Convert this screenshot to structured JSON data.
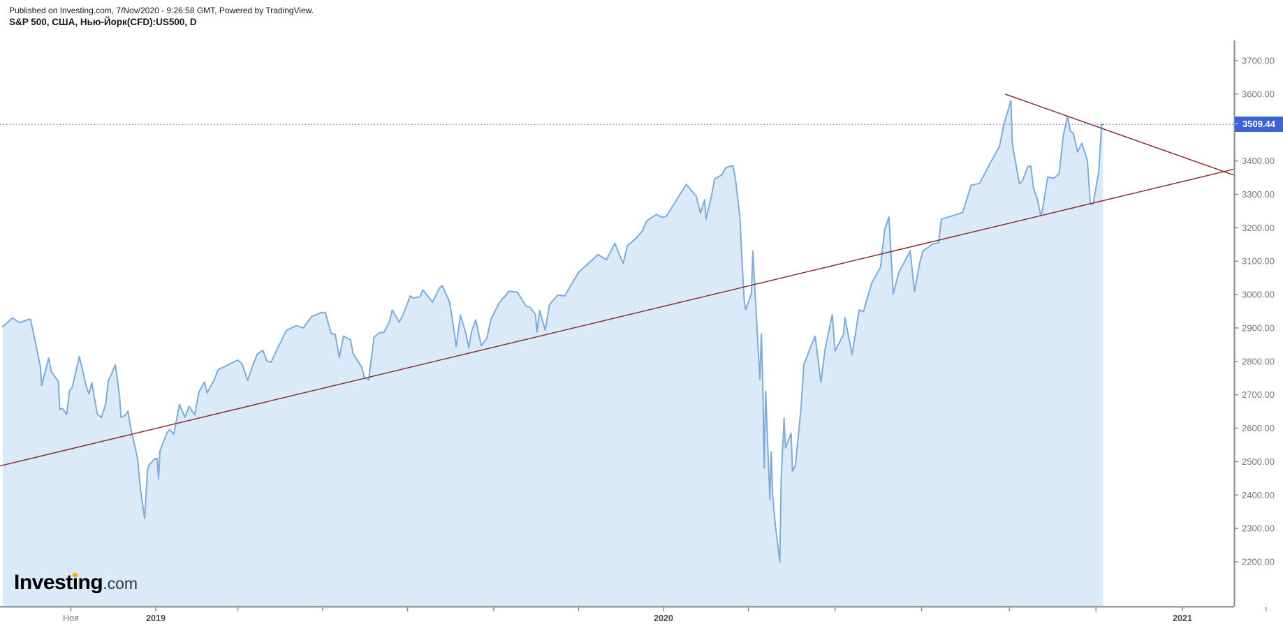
{
  "header": {
    "published_line": "Published on Investing.com, 7/Nov/2020 - 9:26:58 GMT, Powered by TradingView.",
    "symbol_line": "S&P 500, США, Нью-Йорк(CFD):US500, D"
  },
  "logo": {
    "main": "Investing",
    "suffix": ".com"
  },
  "colors": {
    "series_line": "#7aace0",
    "series_fill": "#daeaf8",
    "trendline": "#8b2e2e",
    "last_price_line": "#4169e1",
    "badge_bg": "#3e63d6",
    "badge_text": "#ffffff",
    "axis_line": "#8a8a8a",
    "axis_text": "#757575",
    "year_text": "#4a4a4a",
    "logo_accent": "#f7a823"
  },
  "chart_data": {
    "type": "area",
    "title": "S&P 500, США, Нью-Йорк(CFD):US500, D",
    "xlabel": "",
    "ylabel": "",
    "grid": false,
    "legend": false,
    "xlim": [
      "2018-09-11",
      "2021-02-06"
    ],
    "ylim": [
      2112,
      3762
    ],
    "last_price": {
      "value": 3509.44,
      "label": "3509.44"
    },
    "y_ticks": [
      {
        "value": 3700,
        "label": "3700.00"
      },
      {
        "value": 3600,
        "label": "3600.00"
      },
      {
        "value": 3400,
        "label": "3400.00"
      },
      {
        "value": 3300,
        "label": "3300.00"
      },
      {
        "value": 3200,
        "label": "3200.00"
      },
      {
        "value": 3100,
        "label": "3100.00"
      },
      {
        "value": 3000,
        "label": "3000.00"
      },
      {
        "value": 2900,
        "label": "2900.00"
      },
      {
        "value": 2800,
        "label": "2800.00"
      },
      {
        "value": 2700,
        "label": "2700.00"
      },
      {
        "value": 2600,
        "label": "2600.00"
      },
      {
        "value": 2500,
        "label": "2500.00"
      },
      {
        "value": 2400,
        "label": "2400.00"
      },
      {
        "value": 2300,
        "label": "2300.00"
      },
      {
        "value": 2200,
        "label": "2200.00"
      }
    ],
    "x_ticks": [
      {
        "date": "2018-11-01",
        "label": "Ноя",
        "style": "month"
      },
      {
        "date": "2019-01-01",
        "label": "2019",
        "style": "year"
      },
      {
        "date": "2019-03-01",
        "label": "",
        "style": "none"
      },
      {
        "date": "2019-05-01",
        "label": "",
        "style": "none"
      },
      {
        "date": "2019-07-01",
        "label": "",
        "style": "none"
      },
      {
        "date": "2019-09-01",
        "label": "",
        "style": "none"
      },
      {
        "date": "2019-11-01",
        "label": "",
        "style": "none"
      },
      {
        "date": "2020-01-01",
        "label": "2020",
        "style": "year"
      },
      {
        "date": "2020-03-01",
        "label": "",
        "style": "none"
      },
      {
        "date": "2020-05-01",
        "label": "",
        "style": "none"
      },
      {
        "date": "2020-07-01",
        "label": "",
        "style": "none"
      },
      {
        "date": "2020-09-01",
        "label": "",
        "style": "none"
      },
      {
        "date": "2020-11-01",
        "label": "",
        "style": "none"
      },
      {
        "date": "2021-01-01",
        "label": "2021",
        "style": "year"
      },
      {
        "date": "2021-03-01",
        "label": "",
        "style": "none"
      }
    ],
    "trendlines": [
      {
        "name": "rising-support",
        "points": [
          [
            "2018-09-11",
            2487
          ],
          [
            "2021-02-06",
            3375
          ]
        ]
      },
      {
        "name": "falling-resistance",
        "points": [
          [
            "2020-08-29",
            3600
          ],
          [
            "2021-02-06",
            3358
          ]
        ]
      }
    ],
    "series": [
      {
        "name": "US500 daily close",
        "points": [
          [
            "2018-09-13",
            2904
          ],
          [
            "2018-09-20",
            2930
          ],
          [
            "2018-09-25",
            2916
          ],
          [
            "2018-10-01",
            2925
          ],
          [
            "2018-10-03",
            2926
          ],
          [
            "2018-10-05",
            2886
          ],
          [
            "2018-10-10",
            2786
          ],
          [
            "2018-10-11",
            2728
          ],
          [
            "2018-10-16",
            2810
          ],
          [
            "2018-10-18",
            2768
          ],
          [
            "2018-10-23",
            2740
          ],
          [
            "2018-10-24",
            2656
          ],
          [
            "2018-10-26",
            2659
          ],
          [
            "2018-10-29",
            2641
          ],
          [
            "2018-10-31",
            2712
          ],
          [
            "2018-11-02",
            2723
          ],
          [
            "2018-11-07",
            2814
          ],
          [
            "2018-11-09",
            2781
          ],
          [
            "2018-11-12",
            2726
          ],
          [
            "2018-11-14",
            2702
          ],
          [
            "2018-11-16",
            2736
          ],
          [
            "2018-11-20",
            2642
          ],
          [
            "2018-11-23",
            2632
          ],
          [
            "2018-11-26",
            2673
          ],
          [
            "2018-11-28",
            2744
          ],
          [
            "2018-11-30",
            2760
          ],
          [
            "2018-12-03",
            2790
          ],
          [
            "2018-12-06",
            2696
          ],
          [
            "2018-12-07",
            2633
          ],
          [
            "2018-12-10",
            2638
          ],
          [
            "2018-12-12",
            2651
          ],
          [
            "2018-12-14",
            2600
          ],
          [
            "2018-12-17",
            2546
          ],
          [
            "2018-12-19",
            2507
          ],
          [
            "2018-12-21",
            2417
          ],
          [
            "2018-12-24",
            2330
          ],
          [
            "2018-12-26",
            2468
          ],
          [
            "2018-12-27",
            2489
          ],
          [
            "2018-12-31",
            2507
          ],
          [
            "2019-01-02",
            2510
          ],
          [
            "2019-01-03",
            2448
          ],
          [
            "2019-01-04",
            2532
          ],
          [
            "2019-01-09",
            2585
          ],
          [
            "2019-01-11",
            2596
          ],
          [
            "2019-01-14",
            2582
          ],
          [
            "2019-01-18",
            2671
          ],
          [
            "2019-01-22",
            2633
          ],
          [
            "2019-01-25",
            2665
          ],
          [
            "2019-01-29",
            2640
          ],
          [
            "2019-02-01",
            2707
          ],
          [
            "2019-02-05",
            2738
          ],
          [
            "2019-02-07",
            2706
          ],
          [
            "2019-02-12",
            2745
          ],
          [
            "2019-02-15",
            2776
          ],
          [
            "2019-02-20",
            2785
          ],
          [
            "2019-02-25",
            2796
          ],
          [
            "2019-03-01",
            2804
          ],
          [
            "2019-03-04",
            2793
          ],
          [
            "2019-03-08",
            2743
          ],
          [
            "2019-03-12",
            2791
          ],
          [
            "2019-03-15",
            2822
          ],
          [
            "2019-03-19",
            2833
          ],
          [
            "2019-03-22",
            2801
          ],
          [
            "2019-03-25",
            2798
          ],
          [
            "2019-03-29",
            2834
          ],
          [
            "2019-04-05",
            2893
          ],
          [
            "2019-04-12",
            2907
          ],
          [
            "2019-04-17",
            2900
          ],
          [
            "2019-04-23",
            2934
          ],
          [
            "2019-04-30",
            2946
          ],
          [
            "2019-05-03",
            2946
          ],
          [
            "2019-05-07",
            2884
          ],
          [
            "2019-05-10",
            2881
          ],
          [
            "2019-05-13",
            2812
          ],
          [
            "2019-05-16",
            2876
          ],
          [
            "2019-05-21",
            2864
          ],
          [
            "2019-05-23",
            2822
          ],
          [
            "2019-05-29",
            2783
          ],
          [
            "2019-05-31",
            2752
          ],
          [
            "2019-06-03",
            2744
          ],
          [
            "2019-06-07",
            2873
          ],
          [
            "2019-06-11",
            2886
          ],
          [
            "2019-06-14",
            2887
          ],
          [
            "2019-06-18",
            2918
          ],
          [
            "2019-06-20",
            2954
          ],
          [
            "2019-06-25",
            2917
          ],
          [
            "2019-06-28",
            2942
          ],
          [
            "2019-07-03",
            2996
          ],
          [
            "2019-07-05",
            2990
          ],
          [
            "2019-07-10",
            2993
          ],
          [
            "2019-07-12",
            3014
          ],
          [
            "2019-07-19",
            2977
          ],
          [
            "2019-07-24",
            3020
          ],
          [
            "2019-07-26",
            3026
          ],
          [
            "2019-07-31",
            2980
          ],
          [
            "2019-08-02",
            2932
          ],
          [
            "2019-08-05",
            2845
          ],
          [
            "2019-08-08",
            2938
          ],
          [
            "2019-08-12",
            2883
          ],
          [
            "2019-08-14",
            2841
          ],
          [
            "2019-08-16",
            2889
          ],
          [
            "2019-08-19",
            2924
          ],
          [
            "2019-08-23",
            2847
          ],
          [
            "2019-08-27",
            2869
          ],
          [
            "2019-08-30",
            2926
          ],
          [
            "2019-09-05",
            2976
          ],
          [
            "2019-09-12",
            3010
          ],
          [
            "2019-09-18",
            3007
          ],
          [
            "2019-09-24",
            2966
          ],
          [
            "2019-09-27",
            2962
          ],
          [
            "2019-10-01",
            2940
          ],
          [
            "2019-10-02",
            2888
          ],
          [
            "2019-10-04",
            2952
          ],
          [
            "2019-10-08",
            2893
          ],
          [
            "2019-10-11",
            2970
          ],
          [
            "2019-10-17",
            2998
          ],
          [
            "2019-10-22",
            2996
          ],
          [
            "2019-10-28",
            3039
          ],
          [
            "2019-11-01",
            3067
          ],
          [
            "2019-11-08",
            3093
          ],
          [
            "2019-11-15",
            3120
          ],
          [
            "2019-11-21",
            3104
          ],
          [
            "2019-11-27",
            3154
          ],
          [
            "2019-12-03",
            3093
          ],
          [
            "2019-12-06",
            3146
          ],
          [
            "2019-12-12",
            3168
          ],
          [
            "2019-12-17",
            3192
          ],
          [
            "2019-12-20",
            3221
          ],
          [
            "2019-12-27",
            3240
          ],
          [
            "2019-12-31",
            3231
          ],
          [
            "2020-01-03",
            3235
          ],
          [
            "2020-01-09",
            3275
          ],
          [
            "2020-01-17",
            3330
          ],
          [
            "2020-01-24",
            3295
          ],
          [
            "2020-01-27",
            3244
          ],
          [
            "2020-01-30",
            3284
          ],
          [
            "2020-01-31",
            3226
          ],
          [
            "2020-02-04",
            3298
          ],
          [
            "2020-02-06",
            3346
          ],
          [
            "2020-02-11",
            3358
          ],
          [
            "2020-02-14",
            3380
          ],
          [
            "2020-02-19",
            3386
          ],
          [
            "2020-02-21",
            3338
          ],
          [
            "2020-02-24",
            3226
          ],
          [
            "2020-02-25",
            3128
          ],
          [
            "2020-02-27",
            2979
          ],
          [
            "2020-02-28",
            2954
          ],
          [
            "2020-03-03",
            3003
          ],
          [
            "2020-03-04",
            3130
          ],
          [
            "2020-03-06",
            2972
          ],
          [
            "2020-03-09",
            2746
          ],
          [
            "2020-03-10",
            2882
          ],
          [
            "2020-03-11",
            2741
          ],
          [
            "2020-03-12",
            2481
          ],
          [
            "2020-03-13",
            2711
          ],
          [
            "2020-03-16",
            2386
          ],
          [
            "2020-03-17",
            2529
          ],
          [
            "2020-03-18",
            2398
          ],
          [
            "2020-03-20",
            2305
          ],
          [
            "2020-03-23",
            2200
          ],
          [
            "2020-03-24",
            2447
          ],
          [
            "2020-03-26",
            2630
          ],
          [
            "2020-03-27",
            2541
          ],
          [
            "2020-03-31",
            2585
          ],
          [
            "2020-04-01",
            2471
          ],
          [
            "2020-04-03",
            2489
          ],
          [
            "2020-04-07",
            2659
          ],
          [
            "2020-04-09",
            2790
          ],
          [
            "2020-04-14",
            2846
          ],
          [
            "2020-04-17",
            2875
          ],
          [
            "2020-04-21",
            2737
          ],
          [
            "2020-04-24",
            2837
          ],
          [
            "2020-04-29",
            2940
          ],
          [
            "2020-05-01",
            2831
          ],
          [
            "2020-05-07",
            2881
          ],
          [
            "2020-05-08",
            2930
          ],
          [
            "2020-05-13",
            2820
          ],
          [
            "2020-05-18",
            2954
          ],
          [
            "2020-05-21",
            2949
          ],
          [
            "2020-05-27",
            3036
          ],
          [
            "2020-06-02",
            3081
          ],
          [
            "2020-06-05",
            3194
          ],
          [
            "2020-06-08",
            3232
          ],
          [
            "2020-06-11",
            3002
          ],
          [
            "2020-06-15",
            3067
          ],
          [
            "2020-06-19",
            3098
          ],
          [
            "2020-06-23",
            3131
          ],
          [
            "2020-06-26",
            3009
          ],
          [
            "2020-06-30",
            3100
          ],
          [
            "2020-07-02",
            3130
          ],
          [
            "2020-07-09",
            3152
          ],
          [
            "2020-07-13",
            3155
          ],
          [
            "2020-07-15",
            3226
          ],
          [
            "2020-07-23",
            3236
          ],
          [
            "2020-07-30",
            3246
          ],
          [
            "2020-08-05",
            3327
          ],
          [
            "2020-08-11",
            3333
          ],
          [
            "2020-08-18",
            3390
          ],
          [
            "2020-08-25",
            3444
          ],
          [
            "2020-08-28",
            3508
          ],
          [
            "2020-09-02",
            3581
          ],
          [
            "2020-09-03",
            3455
          ],
          [
            "2020-09-04",
            3427
          ],
          [
            "2020-09-08",
            3332
          ],
          [
            "2020-09-10",
            3339
          ],
          [
            "2020-09-14",
            3383
          ],
          [
            "2020-09-16",
            3385
          ],
          [
            "2020-09-18",
            3319
          ],
          [
            "2020-09-21",
            3281
          ],
          [
            "2020-09-23",
            3237
          ],
          [
            "2020-09-24",
            3246
          ],
          [
            "2020-09-28",
            3352
          ],
          [
            "2020-10-02",
            3348
          ],
          [
            "2020-10-06",
            3361
          ],
          [
            "2020-10-09",
            3477
          ],
          [
            "2020-10-12",
            3534
          ],
          [
            "2020-10-14",
            3489
          ],
          [
            "2020-10-16",
            3484
          ],
          [
            "2020-10-19",
            3427
          ],
          [
            "2020-10-22",
            3453
          ],
          [
            "2020-10-26",
            3401
          ],
          [
            "2020-10-28",
            3271
          ],
          [
            "2020-10-30",
            3270
          ],
          [
            "2020-11-03",
            3369
          ],
          [
            "2020-11-04",
            3443
          ],
          [
            "2020-11-05",
            3510
          ],
          [
            "2020-11-06",
            3509.44
          ]
        ]
      }
    ]
  }
}
